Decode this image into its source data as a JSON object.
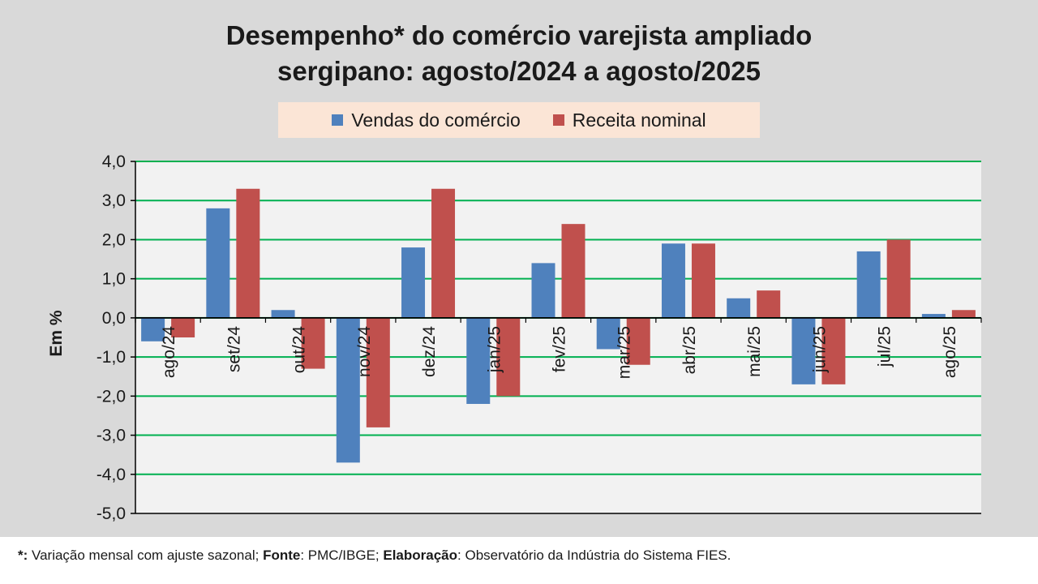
{
  "chart_data": {
    "type": "bar",
    "title_line1": "Desempenho* do comércio varejista ampliado",
    "title_line2": "sergipano: agosto/2024 a agosto/2025",
    "ylabel": "Em %",
    "xlabel": "",
    "ylim": [
      -5,
      4
    ],
    "yticks": [
      "4,0",
      "3,0",
      "2,0",
      "1,0",
      "0,0",
      "-1,0",
      "-2,0",
      "-3,0",
      "-4,0",
      "-5,0"
    ],
    "grid": true,
    "legend_position": "top",
    "categories": [
      "ago/24",
      "set/24",
      "out/24",
      "nov/24",
      "dez/24",
      "jan/25",
      "fev/25",
      "mar/25",
      "abr/25",
      "mai/25",
      "jun/25",
      "jul/25",
      "ago/25"
    ],
    "series": [
      {
        "name": "Vendas do comércio",
        "color": "#4f81bd",
        "values": [
          -0.6,
          2.8,
          0.2,
          -3.7,
          1.8,
          -2.2,
          1.4,
          -0.8,
          1.9,
          0.5,
          -1.7,
          1.7,
          0.1
        ]
      },
      {
        "name": "Receita nominal",
        "color": "#c0504d",
        "values": [
          -0.5,
          3.3,
          -1.3,
          -2.8,
          3.3,
          -2.0,
          2.4,
          -1.2,
          1.9,
          0.7,
          -1.7,
          2.0,
          0.2
        ]
      }
    ]
  },
  "footnote": {
    "star_label": "*:",
    "star_text": " Variação mensal com ajuste sazonal; ",
    "source_label": "Fonte",
    "source_text": ": PMC/IBGE; ",
    "author_label": "Elaboração",
    "author_text": ": Observatório da Indústria do Sistema FIES."
  },
  "colors": {
    "background": "#d9d9d9",
    "plot_background": "#f2f2f2",
    "gridline": "#00b050",
    "legend_background": "#fbe5d6"
  }
}
